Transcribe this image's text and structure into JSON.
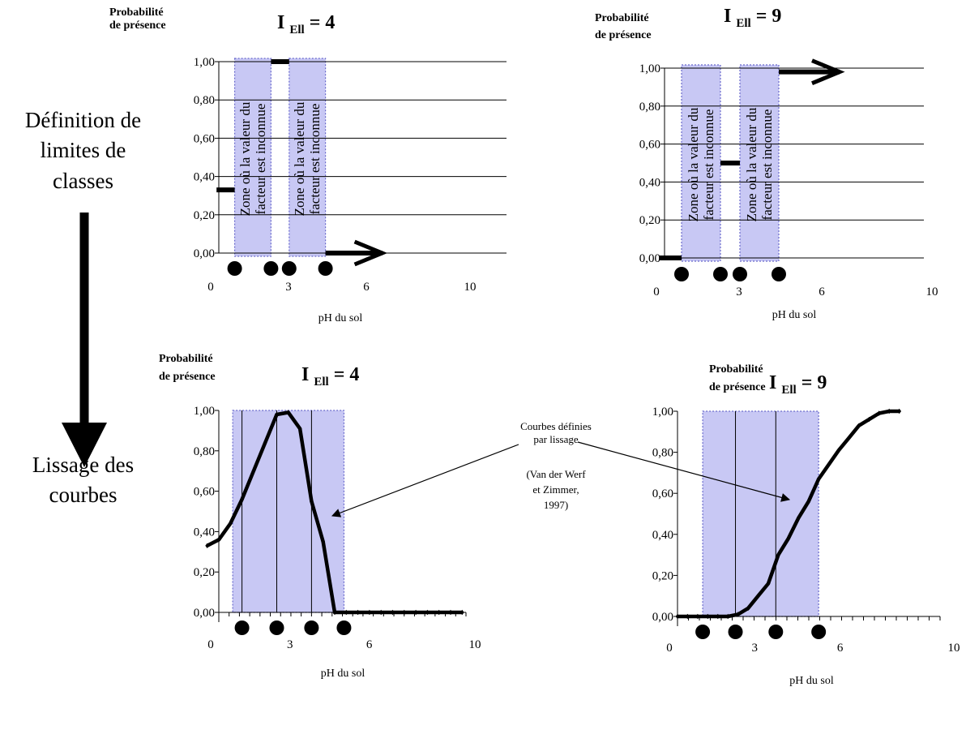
{
  "side_labels": {
    "top": [
      "Définition de",
      "limites de",
      "classes"
    ],
    "bottom": [
      "Lissage des",
      "courbes"
    ]
  },
  "annotation": {
    "line1": "Courbes définies",
    "line2": "par lissage",
    "ref1": "(Van der Werf",
    "ref2": "et Zimmer,",
    "ref3": "1997)"
  },
  "colors": {
    "zone_fill": "#c8c8f4",
    "zone_border": "#6a6acc",
    "curve": "#000000"
  },
  "chart_data": [
    {
      "id": "tl",
      "type": "step",
      "title_prefix": "I",
      "title_sub": "Ell",
      "title_suffix": " = 4",
      "ylabel_line1": "Probabilité",
      "ylabel_line2": "de présence",
      "xlabel": "pH du sol",
      "y_tick_labels": [
        "0,00",
        "0,20",
        "0,40",
        "0,60",
        "0,80",
        "1,00"
      ],
      "x_tick_labels": [
        "0",
        "3",
        "6",
        "10"
      ],
      "x_tick_values": [
        0,
        3,
        6,
        10
      ],
      "xlim": [
        0,
        10
      ],
      "ylim": [
        0,
        1
      ],
      "grid": true,
      "zone_text_line1": "Zone où la valeur du",
      "zone_text_line2": "facteur est inconnue",
      "zones": [
        [
          0.7,
          2.3
        ],
        [
          3.1,
          4.7
        ]
      ],
      "limit_points": [
        0.7,
        2.3,
        3.1,
        4.7
      ],
      "segments": [
        {
          "x": [
            -0.1,
            0.7
          ],
          "y": 0.33
        },
        {
          "x": [
            2.3,
            3.1
          ],
          "y": 1.0
        },
        {
          "x": [
            4.7,
            7.2
          ],
          "y": 0.0,
          "arrow": true
        }
      ]
    },
    {
      "id": "tr",
      "type": "step",
      "title_prefix": "I",
      "title_sub": "Ell",
      "title_suffix": " = 9",
      "ylabel_line1": "Probabilité",
      "ylabel_line2": "de présence",
      "xlabel": "pH du sol",
      "y_tick_labels": [
        "0,00",
        "0,20",
        "0,40",
        "0,60",
        "0,80",
        "1,00"
      ],
      "x_tick_labels": [
        "0",
        "3",
        "6",
        "10"
      ],
      "x_tick_values": [
        0,
        3,
        6,
        10
      ],
      "xlim": [
        0,
        10
      ],
      "ylim": [
        0,
        1
      ],
      "grid": true,
      "zone_text_line1": "Zone où la valeur du",
      "zone_text_line2": "facteur est inconnue",
      "zones": [
        [
          0.7,
          2.3
        ],
        [
          3.1,
          4.7
        ]
      ],
      "limit_points": [
        0.7,
        2.3,
        3.1,
        4.7
      ],
      "segments": [
        {
          "x": [
            -0.2,
            0.7
          ],
          "y": 0.0
        },
        {
          "x": [
            2.3,
            3.1
          ],
          "y": 0.5
        },
        {
          "x": [
            4.7,
            7.2
          ],
          "y": 0.98,
          "arrow": true
        }
      ]
    },
    {
      "id": "bl",
      "type": "line",
      "title_prefix": "I",
      "title_sub": "Ell",
      "title_suffix": " = 4",
      "ylabel_line1": "Probabilité",
      "ylabel_line2": "de présence",
      "xlabel": "pH du sol",
      "y_tick_labels": [
        "0,00",
        "0,20",
        "0,40",
        "0,60",
        "0,80",
        "1,00"
      ],
      "x_tick_labels": [
        "0",
        "3",
        "6",
        "10"
      ],
      "x_tick_values": [
        0,
        3,
        6,
        10
      ],
      "xlim": [
        0,
        10
      ],
      "ylim": [
        0,
        1
      ],
      "grid": false,
      "zones": [
        [
          0.6,
          5.4
        ]
      ],
      "vlines": [
        1.0,
        2.5,
        4.0
      ],
      "limit_points": [
        1.0,
        2.5,
        4.0,
        5.4
      ],
      "series_x": [
        -0.5,
        0,
        0.5,
        1,
        1.5,
        2,
        2.5,
        3,
        3.5,
        4,
        4.5,
        5,
        5.5,
        6,
        6.5,
        7,
        7.5,
        8,
        8.5,
        9,
        9.5,
        10,
        10.5
      ],
      "series_y": [
        0.33,
        0.36,
        0.44,
        0.56,
        0.7,
        0.84,
        0.98,
        0.99,
        0.91,
        0.55,
        0.35,
        0.0,
        0.0,
        0.0,
        0.0,
        0.0,
        0.0,
        0.0,
        0.0,
        0.0,
        0.0,
        0.0,
        0.0
      ]
    },
    {
      "id": "br",
      "type": "line",
      "title_prefix": "I",
      "title_sub": "Ell",
      "title_suffix": " = 9",
      "ylabel_line1": "Probabilité",
      "ylabel_line2": "de présence",
      "xlabel": "pH du sol",
      "y_tick_labels": [
        "0,00",
        "0,20",
        "0,40",
        "0,60",
        "0,80",
        "1,00"
      ],
      "x_tick_labels": [
        "0",
        "3",
        "6",
        "10"
      ],
      "x_tick_values": [
        0,
        3,
        6,
        10
      ],
      "xlim": [
        0,
        10
      ],
      "ylim": [
        0,
        1
      ],
      "grid": false,
      "zones": [
        [
          1.0,
          5.6
        ]
      ],
      "vlines": [
        2.3,
        3.9
      ],
      "limit_points": [
        1.0,
        2.3,
        3.9,
        5.6
      ],
      "series_x": [
        0,
        0.4,
        0.8,
        1.2,
        1.6,
        2.0,
        2.4,
        2.8,
        3.2,
        3.6,
        4.0,
        4.4,
        4.8,
        5.2,
        5.6,
        6.0,
        6.4,
        6.8,
        7.2,
        7.6,
        8.0,
        8.4,
        8.8
      ],
      "series_y": [
        0.0,
        0.0,
        0.0,
        0.0,
        0.0,
        0.0,
        0.01,
        0.04,
        0.1,
        0.16,
        0.3,
        0.38,
        0.48,
        0.56,
        0.67,
        0.74,
        0.81,
        0.87,
        0.93,
        0.96,
        0.99,
        1.0,
        1.0
      ]
    }
  ]
}
